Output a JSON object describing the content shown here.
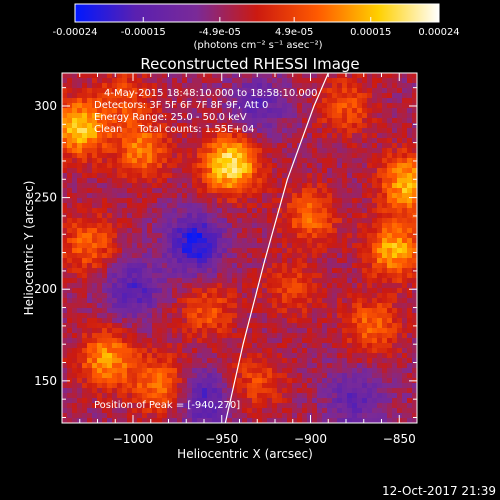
{
  "colorbar": {
    "tick_labels": [
      "-0.00024",
      "-0.00015",
      "-4.9e-05",
      "4.9e-05",
      "0.00015",
      "0.00024"
    ],
    "tick_values": [
      -0.00024,
      -0.00015,
      -4.9e-05,
      4.9e-05,
      0.00015,
      0.00024
    ],
    "range": [
      -0.00024,
      0.00024
    ],
    "unit_label": "(photons cm⁻² s⁻¹ asec⁻²)",
    "colors": [
      "#0018ff",
      "#5a20b0",
      "#7a2a98",
      "#cc1a10",
      "#ff5a00",
      "#ffd000",
      "#ffffff"
    ]
  },
  "chart_data": {
    "type": "heatmap",
    "title": "Reconstructed RHESSI Image",
    "xlabel": "Heliocentric X (arcsec)",
    "ylabel": "Heliocentric Y (arcsec)",
    "xlim": [
      -1040,
      -840
    ],
    "ylim": [
      127,
      318
    ],
    "x_ticks": [
      -1000,
      -950,
      -900,
      -850
    ],
    "x_tick_labels": [
      "−1000",
      "−950",
      "−900",
      "−850"
    ],
    "y_ticks": [
      150,
      200,
      250,
      300
    ],
    "y_tick_labels": [
      "150",
      "200",
      "250",
      "300"
    ],
    "annotations": [
      "4-May-2015 18:48:10.000 to 18:58:10.000",
      "Detectors: 3F 5F 6F 7F 8F 9F, Att 0",
      "Energy Range: 25.0 - 50.0 keV",
      "Clean     Total counts: 1.55E+04"
    ],
    "peak_label": "Position of Peak = [-940,270]",
    "peak_position": [
      -940,
      270
    ],
    "limb_curve": [
      [
        -948,
        127
      ],
      [
        -938,
        170
      ],
      [
        -926,
        215
      ],
      [
        -913,
        260
      ],
      [
        -898,
        300
      ],
      [
        -890,
        318
      ]
    ],
    "hotspots": [
      {
        "x": -945,
        "y": 268,
        "v": 0.00024
      },
      {
        "x": -1030,
        "y": 288,
        "v": 0.0002
      },
      {
        "x": -845,
        "y": 258,
        "v": 0.00019
      },
      {
        "x": -853,
        "y": 222,
        "v": 0.00018
      },
      {
        "x": -995,
        "y": 276,
        "v": 0.00014
      },
      {
        "x": -1015,
        "y": 162,
        "v": 0.00016
      },
      {
        "x": -985,
        "y": 148,
        "v": 0.00014
      },
      {
        "x": -958,
        "y": 188,
        "v": 0.0001
      },
      {
        "x": -900,
        "y": 240,
        "v": 0.00012
      },
      {
        "x": -865,
        "y": 180,
        "v": 0.00012
      },
      {
        "x": -880,
        "y": 300,
        "v": 0.0001
      },
      {
        "x": -1025,
        "y": 225,
        "v": 0.00012
      },
      {
        "x": -930,
        "y": 150,
        "v": 9e-05
      },
      {
        "x": -1005,
        "y": 305,
        "v": 9e-05
      },
      {
        "x": -910,
        "y": 200,
        "v": 8e-05
      }
    ],
    "coldspots": [
      {
        "x": -965,
        "y": 225,
        "v": -0.00018
      },
      {
        "x": -1000,
        "y": 200,
        "v": -0.00012
      },
      {
        "x": -960,
        "y": 140,
        "v": -0.00013
      },
      {
        "x": -930,
        "y": 300,
        "v": -0.0001
      },
      {
        "x": -875,
        "y": 140,
        "v": -0.0001
      }
    ]
  },
  "footer": {
    "timestamp": "12-Oct-2017 21:39"
  }
}
